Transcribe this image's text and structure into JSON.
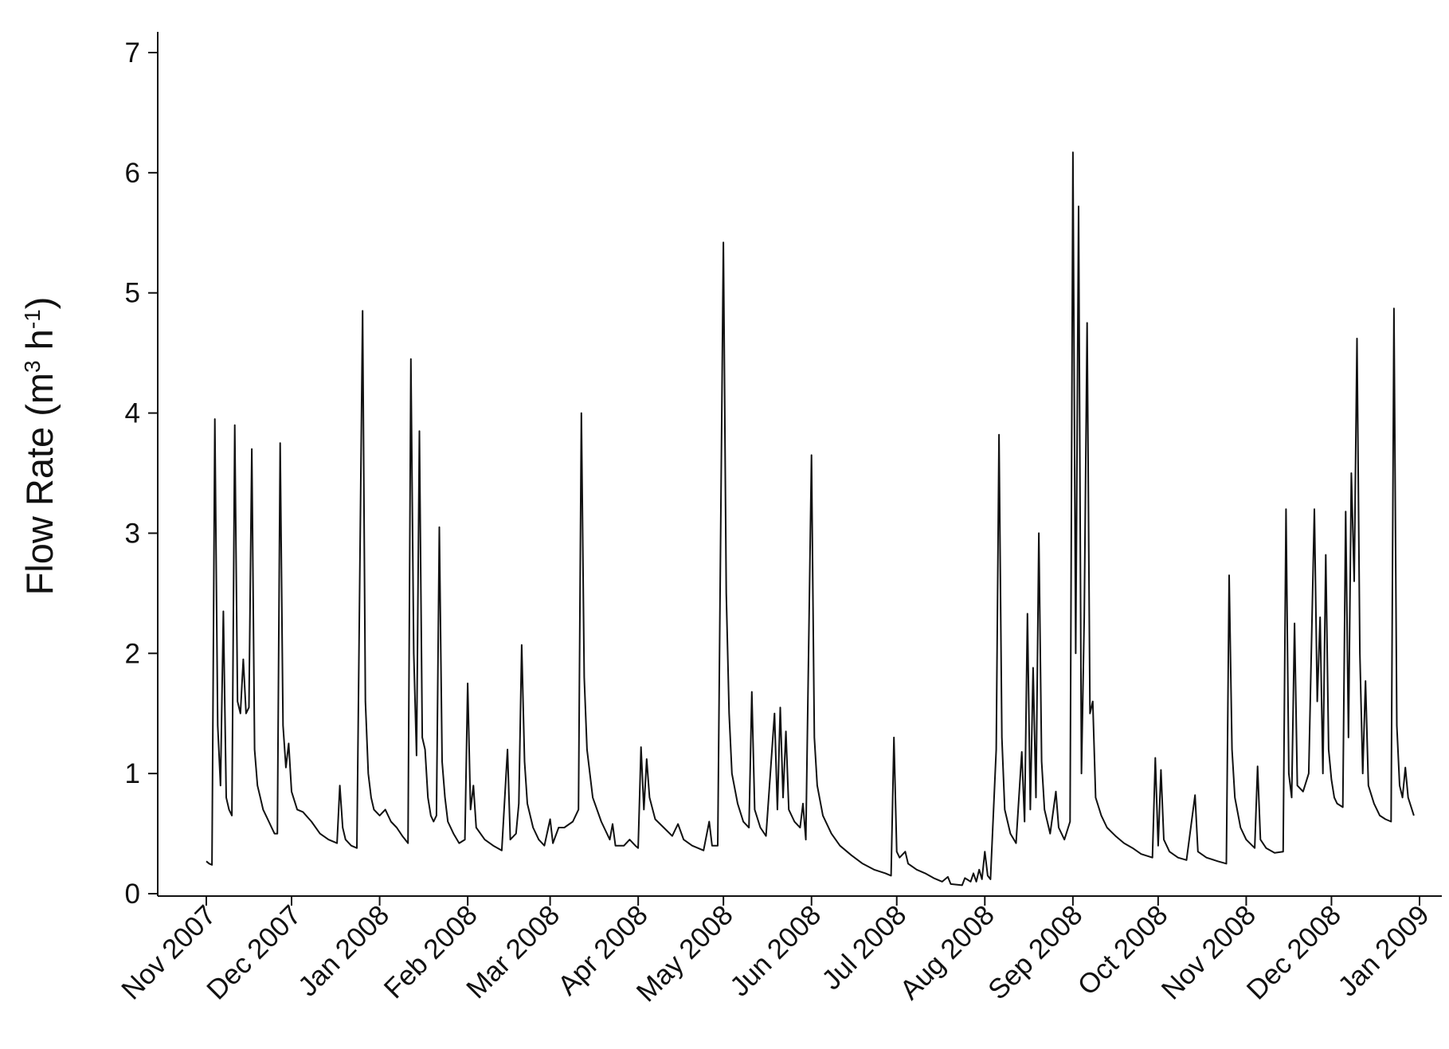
{
  "chart_data": {
    "type": "line",
    "title": "",
    "ylabel": {
      "main": "Flow Rate (m",
      "sup1": "3",
      "mid": " h",
      "sup2": "-1",
      "close": ")"
    },
    "xlabel": "",
    "ylim": [
      0,
      7
    ],
    "yticks": [
      "0",
      "1",
      "2",
      "3",
      "4",
      "5",
      "6",
      "7"
    ],
    "x_ticks": [
      {
        "date": "2007-11-01",
        "label": "Nov 2007"
      },
      {
        "date": "2007-12-01",
        "label": "Dec 2007"
      },
      {
        "date": "2008-01-01",
        "label": "Jan 2008"
      },
      {
        "date": "2008-02-01",
        "label": "Feb 2008"
      },
      {
        "date": "2008-03-01",
        "label": "Mar 2008"
      },
      {
        "date": "2008-04-01",
        "label": "Apr 2008"
      },
      {
        "date": "2008-05-01",
        "label": "May 2008"
      },
      {
        "date": "2008-06-01",
        "label": "Jun 2008"
      },
      {
        "date": "2008-07-01",
        "label": "Jul 2008"
      },
      {
        "date": "2008-08-01",
        "label": "Aug 2008"
      },
      {
        "date": "2008-09-01",
        "label": "Sep 2008"
      },
      {
        "date": "2008-10-01",
        "label": "Oct 2008"
      },
      {
        "date": "2008-11-01",
        "label": "Nov 2008"
      },
      {
        "date": "2008-12-01",
        "label": "Dec 2008"
      },
      {
        "date": "2009-01-01",
        "label": "Jan 2009"
      }
    ],
    "grid": false,
    "legend": "none",
    "series": [
      {
        "color": "#111111",
        "points": [
          [
            "2007-11-01",
            0.27
          ],
          [
            "2007-11-02",
            0.25
          ],
          [
            "2007-11-03",
            0.24
          ],
          [
            "2007-11-04",
            3.95
          ],
          [
            "2007-11-05",
            1.4
          ],
          [
            "2007-11-06",
            0.9
          ],
          [
            "2007-11-07",
            2.35
          ],
          [
            "2007-11-08",
            0.8
          ],
          [
            "2007-11-09",
            0.7
          ],
          [
            "2007-11-10",
            0.65
          ],
          [
            "2007-11-11",
            3.9
          ],
          [
            "2007-11-12",
            1.6
          ],
          [
            "2007-11-13",
            1.5
          ],
          [
            "2007-11-14",
            1.95
          ],
          [
            "2007-11-15",
            1.5
          ],
          [
            "2007-11-16",
            1.55
          ],
          [
            "2007-11-17",
            3.7
          ],
          [
            "2007-11-18",
            1.2
          ],
          [
            "2007-11-19",
            0.9
          ],
          [
            "2007-11-20",
            0.8
          ],
          [
            "2007-11-21",
            0.7
          ],
          [
            "2007-11-22",
            0.65
          ],
          [
            "2007-11-23",
            0.6
          ],
          [
            "2007-11-24",
            0.55
          ],
          [
            "2007-11-25",
            0.5
          ],
          [
            "2007-11-26",
            0.5
          ],
          [
            "2007-11-27",
            3.75
          ],
          [
            "2007-11-28",
            1.4
          ],
          [
            "2007-11-29",
            1.05
          ],
          [
            "2007-11-30",
            1.25
          ],
          [
            "2007-12-01",
            0.85
          ],
          [
            "2007-12-03",
            0.7
          ],
          [
            "2007-12-05",
            0.68
          ],
          [
            "2007-12-08",
            0.6
          ],
          [
            "2007-12-11",
            0.5
          ],
          [
            "2007-12-14",
            0.45
          ],
          [
            "2007-12-17",
            0.42
          ],
          [
            "2007-12-18",
            0.9
          ],
          [
            "2007-12-19",
            0.55
          ],
          [
            "2007-12-20",
            0.45
          ],
          [
            "2007-12-22",
            0.4
          ],
          [
            "2007-12-24",
            0.38
          ],
          [
            "2007-12-26",
            4.85
          ],
          [
            "2007-12-27",
            1.6
          ],
          [
            "2007-12-28",
            1.0
          ],
          [
            "2007-12-29",
            0.8
          ],
          [
            "2007-12-30",
            0.7
          ],
          [
            "2008-01-01",
            0.65
          ],
          [
            "2008-01-03",
            0.7
          ],
          [
            "2008-01-05",
            0.6
          ],
          [
            "2008-01-07",
            0.55
          ],
          [
            "2008-01-09",
            0.48
          ],
          [
            "2008-01-11",
            0.42
          ],
          [
            "2008-01-12",
            4.45
          ],
          [
            "2008-01-13",
            2.0
          ],
          [
            "2008-01-14",
            1.15
          ],
          [
            "2008-01-15",
            3.85
          ],
          [
            "2008-01-16",
            1.3
          ],
          [
            "2008-01-17",
            1.2
          ],
          [
            "2008-01-18",
            0.8
          ],
          [
            "2008-01-19",
            0.65
          ],
          [
            "2008-01-20",
            0.6
          ],
          [
            "2008-01-21",
            0.65
          ],
          [
            "2008-01-22",
            3.05
          ],
          [
            "2008-01-23",
            1.1
          ],
          [
            "2008-01-24",
            0.8
          ],
          [
            "2008-01-25",
            0.6
          ],
          [
            "2008-01-27",
            0.5
          ],
          [
            "2008-01-29",
            0.42
          ],
          [
            "2008-01-31",
            0.45
          ],
          [
            "2008-02-01",
            1.75
          ],
          [
            "2008-02-02",
            0.7
          ],
          [
            "2008-02-03",
            0.9
          ],
          [
            "2008-02-04",
            0.55
          ],
          [
            "2008-02-07",
            0.45
          ],
          [
            "2008-02-10",
            0.4
          ],
          [
            "2008-02-13",
            0.36
          ],
          [
            "2008-02-15",
            1.2
          ],
          [
            "2008-02-16",
            0.45
          ],
          [
            "2008-02-18",
            0.5
          ],
          [
            "2008-02-19",
            0.75
          ],
          [
            "2008-02-20",
            2.07
          ],
          [
            "2008-02-21",
            1.1
          ],
          [
            "2008-02-22",
            0.75
          ],
          [
            "2008-02-24",
            0.55
          ],
          [
            "2008-02-26",
            0.45
          ],
          [
            "2008-02-28",
            0.4
          ],
          [
            "2008-03-01",
            0.62
          ],
          [
            "2008-03-02",
            0.42
          ],
          [
            "2008-03-04",
            0.55
          ],
          [
            "2008-03-06",
            0.55
          ],
          [
            "2008-03-09",
            0.6
          ],
          [
            "2008-03-11",
            0.7
          ],
          [
            "2008-03-12",
            4.0
          ],
          [
            "2008-03-13",
            1.8
          ],
          [
            "2008-03-14",
            1.2
          ],
          [
            "2008-03-16",
            0.8
          ],
          [
            "2008-03-19",
            0.6
          ],
          [
            "2008-03-22",
            0.45
          ],
          [
            "2008-03-23",
            0.58
          ],
          [
            "2008-03-24",
            0.4
          ],
          [
            "2008-03-27",
            0.4
          ],
          [
            "2008-03-29",
            0.45
          ],
          [
            "2008-03-31",
            0.4
          ],
          [
            "2008-04-01",
            0.38
          ],
          [
            "2008-04-02",
            1.22
          ],
          [
            "2008-04-03",
            0.7
          ],
          [
            "2008-04-04",
            1.12
          ],
          [
            "2008-04-05",
            0.8
          ],
          [
            "2008-04-07",
            0.62
          ],
          [
            "2008-04-10",
            0.55
          ],
          [
            "2008-04-13",
            0.48
          ],
          [
            "2008-04-15",
            0.58
          ],
          [
            "2008-04-17",
            0.45
          ],
          [
            "2008-04-20",
            0.4
          ],
          [
            "2008-04-24",
            0.36
          ],
          [
            "2008-04-26",
            0.6
          ],
          [
            "2008-04-27",
            0.4
          ],
          [
            "2008-04-29",
            0.4
          ],
          [
            "2008-05-01",
            5.42
          ],
          [
            "2008-05-02",
            2.5
          ],
          [
            "2008-05-03",
            1.5
          ],
          [
            "2008-05-04",
            1.0
          ],
          [
            "2008-05-06",
            0.75
          ],
          [
            "2008-05-08",
            0.6
          ],
          [
            "2008-05-10",
            0.55
          ],
          [
            "2008-05-11",
            1.68
          ],
          [
            "2008-05-12",
            0.7
          ],
          [
            "2008-05-14",
            0.55
          ],
          [
            "2008-05-16",
            0.48
          ],
          [
            "2008-05-19",
            1.5
          ],
          [
            "2008-05-20",
            0.7
          ],
          [
            "2008-05-21",
            1.55
          ],
          [
            "2008-05-22",
            0.8
          ],
          [
            "2008-05-23",
            1.35
          ],
          [
            "2008-05-24",
            0.7
          ],
          [
            "2008-05-26",
            0.6
          ],
          [
            "2008-05-28",
            0.55
          ],
          [
            "2008-05-29",
            0.75
          ],
          [
            "2008-05-30",
            0.45
          ],
          [
            "2008-06-01",
            3.65
          ],
          [
            "2008-06-02",
            1.3
          ],
          [
            "2008-06-03",
            0.9
          ],
          [
            "2008-06-05",
            0.65
          ],
          [
            "2008-06-08",
            0.5
          ],
          [
            "2008-06-11",
            0.4
          ],
          [
            "2008-06-15",
            0.32
          ],
          [
            "2008-06-19",
            0.25
          ],
          [
            "2008-06-23",
            0.2
          ],
          [
            "2008-06-27",
            0.17
          ],
          [
            "2008-06-29",
            0.15
          ],
          [
            "2008-06-30",
            1.3
          ],
          [
            "2008-07-01",
            0.35
          ],
          [
            "2008-07-02",
            0.3
          ],
          [
            "2008-07-04",
            0.35
          ],
          [
            "2008-07-05",
            0.25
          ],
          [
            "2008-07-08",
            0.2
          ],
          [
            "2008-07-11",
            0.17
          ],
          [
            "2008-07-14",
            0.13
          ],
          [
            "2008-07-17",
            0.1
          ],
          [
            "2008-07-19",
            0.14
          ],
          [
            "2008-07-20",
            0.08
          ],
          [
            "2008-07-24",
            0.07
          ],
          [
            "2008-07-25",
            0.13
          ],
          [
            "2008-07-27",
            0.1
          ],
          [
            "2008-07-28",
            0.17
          ],
          [
            "2008-07-29",
            0.1
          ],
          [
            "2008-07-30",
            0.2
          ],
          [
            "2008-07-31",
            0.12
          ],
          [
            "2008-08-01",
            0.35
          ],
          [
            "2008-08-02",
            0.15
          ],
          [
            "2008-08-03",
            0.12
          ],
          [
            "2008-08-05",
            1.2
          ],
          [
            "2008-08-06",
            3.82
          ],
          [
            "2008-08-07",
            1.3
          ],
          [
            "2008-08-08",
            0.7
          ],
          [
            "2008-08-10",
            0.5
          ],
          [
            "2008-08-12",
            0.42
          ],
          [
            "2008-08-14",
            1.18
          ],
          [
            "2008-08-15",
            0.6
          ],
          [
            "2008-08-16",
            2.33
          ],
          [
            "2008-08-17",
            0.7
          ],
          [
            "2008-08-18",
            1.88
          ],
          [
            "2008-08-19",
            0.8
          ],
          [
            "2008-08-20",
            3.0
          ],
          [
            "2008-08-21",
            1.1
          ],
          [
            "2008-08-22",
            0.7
          ],
          [
            "2008-08-24",
            0.5
          ],
          [
            "2008-08-26",
            0.85
          ],
          [
            "2008-08-27",
            0.55
          ],
          [
            "2008-08-29",
            0.45
          ],
          [
            "2008-08-31",
            0.6
          ],
          [
            "2008-09-01",
            6.17
          ],
          [
            "2008-09-02",
            2.0
          ],
          [
            "2008-09-03",
            5.72
          ],
          [
            "2008-09-04",
            1.0
          ],
          [
            "2008-09-05",
            2.3
          ],
          [
            "2008-09-06",
            4.75
          ],
          [
            "2008-09-07",
            1.5
          ],
          [
            "2008-09-08",
            1.6
          ],
          [
            "2008-09-09",
            0.8
          ],
          [
            "2008-09-11",
            0.65
          ],
          [
            "2008-09-13",
            0.55
          ],
          [
            "2008-09-16",
            0.48
          ],
          [
            "2008-09-19",
            0.42
          ],
          [
            "2008-09-22",
            0.38
          ],
          [
            "2008-09-25",
            0.33
          ],
          [
            "2008-09-29",
            0.3
          ],
          [
            "2008-09-30",
            1.13
          ],
          [
            "2008-10-01",
            0.4
          ],
          [
            "2008-10-02",
            1.03
          ],
          [
            "2008-10-03",
            0.45
          ],
          [
            "2008-10-05",
            0.35
          ],
          [
            "2008-10-08",
            0.3
          ],
          [
            "2008-10-11",
            0.28
          ],
          [
            "2008-10-14",
            0.82
          ],
          [
            "2008-10-15",
            0.35
          ],
          [
            "2008-10-18",
            0.3
          ],
          [
            "2008-10-22",
            0.27
          ],
          [
            "2008-10-25",
            0.25
          ],
          [
            "2008-10-26",
            2.65
          ],
          [
            "2008-10-27",
            1.2
          ],
          [
            "2008-10-28",
            0.8
          ],
          [
            "2008-10-30",
            0.55
          ],
          [
            "2008-11-01",
            0.45
          ],
          [
            "2008-11-04",
            0.38
          ],
          [
            "2008-11-05",
            1.06
          ],
          [
            "2008-11-06",
            0.45
          ],
          [
            "2008-11-08",
            0.38
          ],
          [
            "2008-11-11",
            0.34
          ],
          [
            "2008-11-14",
            0.35
          ],
          [
            "2008-11-15",
            3.2
          ],
          [
            "2008-11-16",
            1.0
          ],
          [
            "2008-11-17",
            0.8
          ],
          [
            "2008-11-18",
            2.25
          ],
          [
            "2008-11-19",
            0.9
          ],
          [
            "2008-11-21",
            0.85
          ],
          [
            "2008-11-23",
            1.0
          ],
          [
            "2008-11-25",
            3.2
          ],
          [
            "2008-11-26",
            1.6
          ],
          [
            "2008-11-27",
            2.3
          ],
          [
            "2008-11-28",
            1.0
          ],
          [
            "2008-11-29",
            2.82
          ],
          [
            "2008-11-30",
            1.2
          ],
          [
            "2008-12-01",
            0.95
          ],
          [
            "2008-12-02",
            0.8
          ],
          [
            "2008-12-03",
            0.75
          ],
          [
            "2008-12-05",
            0.72
          ],
          [
            "2008-12-06",
            3.18
          ],
          [
            "2008-12-07",
            1.3
          ],
          [
            "2008-12-08",
            3.5
          ],
          [
            "2008-12-09",
            2.6
          ],
          [
            "2008-12-10",
            4.62
          ],
          [
            "2008-12-11",
            2.0
          ],
          [
            "2008-12-12",
            1.0
          ],
          [
            "2008-12-13",
            1.77
          ],
          [
            "2008-12-14",
            0.9
          ],
          [
            "2008-12-16",
            0.75
          ],
          [
            "2008-12-18",
            0.65
          ],
          [
            "2008-12-20",
            0.62
          ],
          [
            "2008-12-22",
            0.6
          ],
          [
            "2008-12-23",
            4.87
          ],
          [
            "2008-12-24",
            1.4
          ],
          [
            "2008-12-25",
            0.9
          ],
          [
            "2008-12-26",
            0.8
          ],
          [
            "2008-12-27",
            1.05
          ],
          [
            "2008-12-28",
            0.8
          ],
          [
            "2008-12-30",
            0.65
          ]
        ]
      }
    ]
  }
}
